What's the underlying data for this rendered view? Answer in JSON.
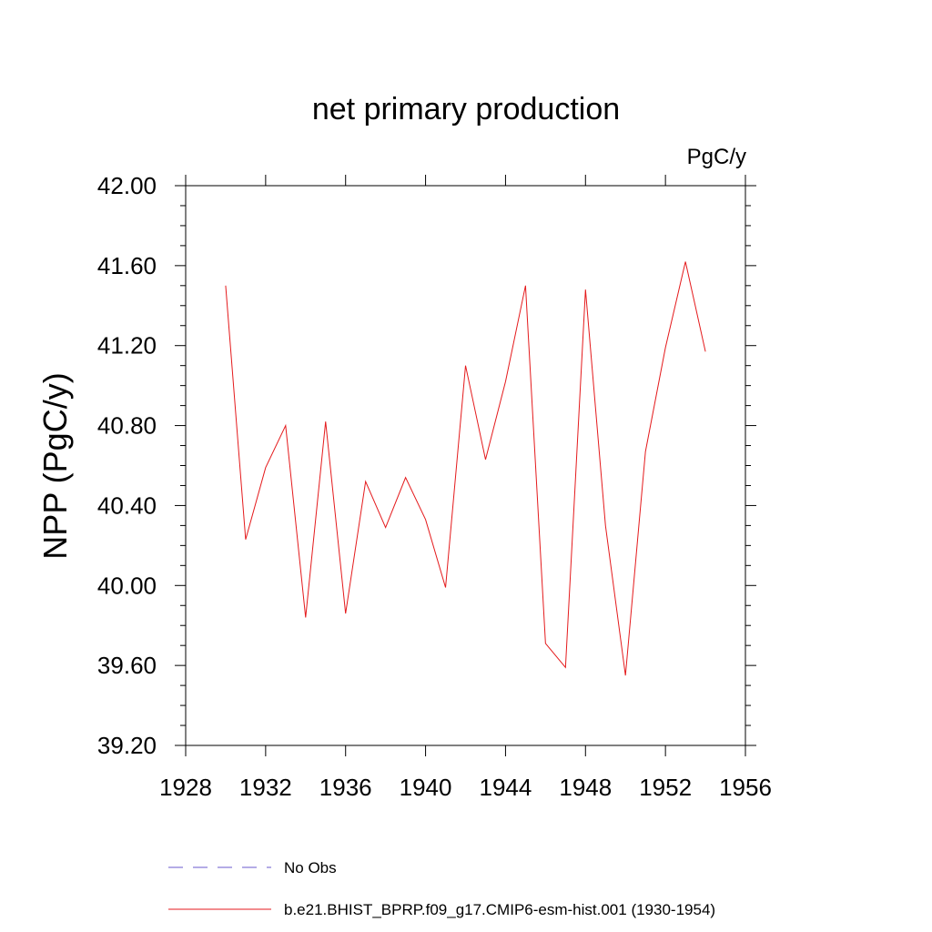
{
  "chart_data": {
    "type": "line",
    "title": "net primary production",
    "units_label": "PgC/y",
    "ylabel": "NPP  (PgC/y)",
    "xlabel": "",
    "xlim": [
      1928,
      1956
    ],
    "ylim": [
      39.2,
      42.0
    ],
    "x_ticks": [
      "1928",
      "1932",
      "1936",
      "1940",
      "1944",
      "1948",
      "1952",
      "1956"
    ],
    "y_ticks": [
      "39.20",
      "39.60",
      "40.00",
      "40.40",
      "40.80",
      "41.20",
      "41.60",
      "42.00"
    ],
    "grid": false,
    "legend_position": "bottom",
    "series": [
      {
        "name": "b.e21.BHIST_BPRP.f09_g17.CMIP6-esm-hist.001 (1930-1954)",
        "color": "#e41a1c",
        "style": "solid",
        "x": [
          1930,
          1931,
          1932,
          1933,
          1934,
          1935,
          1936,
          1937,
          1938,
          1939,
          1940,
          1941,
          1942,
          1943,
          1944,
          1945,
          1946,
          1947,
          1948,
          1949,
          1950,
          1951,
          1952,
          1953,
          1954
        ],
        "values": [
          41.5,
          40.23,
          40.59,
          40.8,
          39.84,
          40.82,
          39.86,
          40.52,
          40.29,
          40.54,
          40.33,
          39.99,
          41.1,
          40.63,
          41.02,
          41.5,
          39.71,
          39.59,
          41.48,
          40.3,
          39.55,
          40.67,
          41.19,
          41.62,
          41.17
        ]
      }
    ],
    "legend": [
      {
        "label": "No Obs",
        "color": "#6a5acd",
        "style": "dashed"
      },
      {
        "label": "b.e21.BHIST_BPRP.f09_g17.CMIP6-esm-hist.001 (1930-1954)",
        "color": "#e41a1c",
        "style": "solid"
      }
    ]
  }
}
